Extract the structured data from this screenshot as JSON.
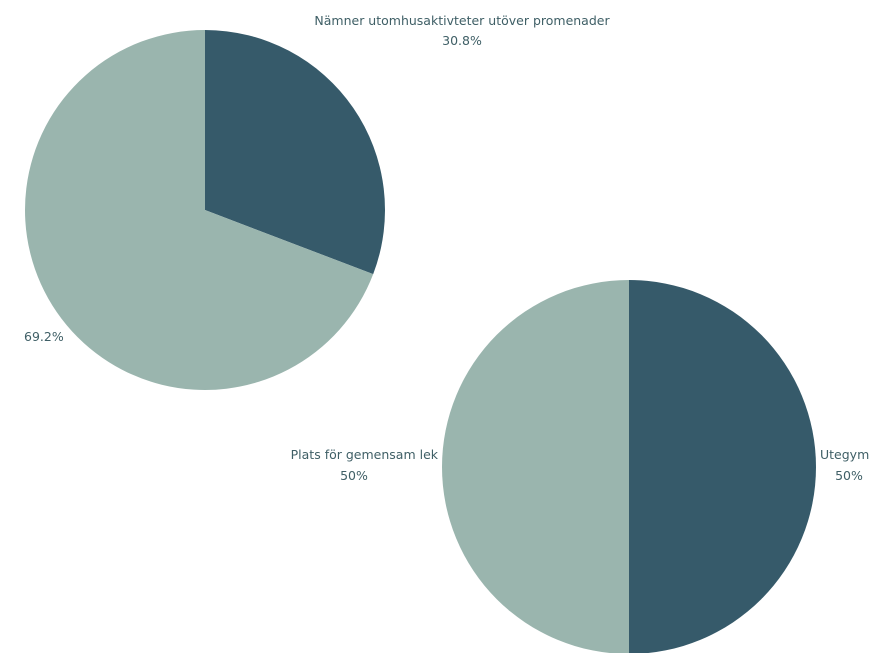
{
  "colors": {
    "dark": "#365a6a",
    "light": "#9ab5ae",
    "label": "#3f5f66"
  },
  "chart_data": [
    {
      "type": "pie",
      "title": "",
      "slices": [
        {
          "label": "Nämner utomhusaktivteter utöver promenader",
          "value": 30.8,
          "display": "30.8%",
          "color": "#365a6a"
        },
        {
          "label": "",
          "value": 69.2,
          "display": "69.2%",
          "color": "#9ab5ae"
        }
      ]
    },
    {
      "type": "pie",
      "title": "",
      "slices": [
        {
          "label": "Utegym",
          "value": 50,
          "display": "50%",
          "color": "#365a6a"
        },
        {
          "label": "Plats för gemensam lek",
          "value": 50,
          "display": "50%",
          "color": "#9ab5ae"
        }
      ]
    }
  ]
}
